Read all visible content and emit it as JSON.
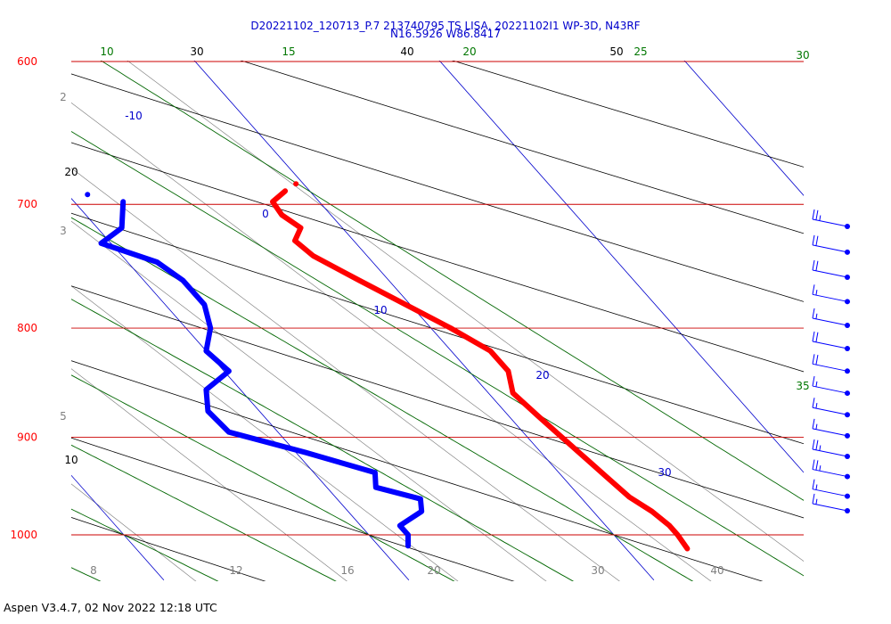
{
  "header": {
    "title_line1": "D20221102_120713_P.7 213740795 TS LISA, 20221102I1 WP-3D, N43RF",
    "title_line2": "N16.5926 W86.8417"
  },
  "footer": {
    "text": "Aspen V3.4.7, 02 Nov 2022  12:18 UTC"
  },
  "chart_data": {
    "type": "skew-t log-p",
    "pressure_axis": {
      "labels": [
        "600",
        "700",
        "800",
        "900",
        "1000"
      ],
      "ylim_hPa": [
        600,
        1050
      ],
      "scale": "log"
    },
    "temperature_axis": {
      "label": "",
      "xlim_C": [
        6,
        45
      ]
    },
    "isotherm_labels": [
      "-10",
      "0",
      "10",
      "20",
      "30"
    ],
    "dry_adiabat_labels": [
      "10",
      "20",
      "30",
      "40",
      "50"
    ],
    "moist_adiabat_labels": [
      "10",
      "15",
      "20",
      "25",
      "30",
      "35"
    ],
    "mixing_ratio_labels": [
      "2",
      "3",
      "5",
      "8",
      "12",
      "16",
      "20",
      "30",
      "40"
    ],
    "colors": {
      "temperature": "#ff0000",
      "dewpoint": "#0000ff",
      "isobar": "#cc0000",
      "isotherm": "#0000cc",
      "dry_adiabat": "#000000",
      "moist_adiabat": "#006600",
      "mixing_ratio": "#808080",
      "wind": "#0000ff"
    },
    "series": [
      {
        "values": [
          [
            690,
            29.0
          ],
          [
            698,
            28.1
          ],
          [
            708,
            28.0
          ],
          [
            718,
            28.3
          ],
          [
            728,
            27.6
          ],
          [
            740,
            27.8
          ],
          [
            760,
            28.8
          ],
          [
            800,
            30.8
          ],
          [
            820,
            31.6
          ],
          [
            838,
            31.6
          ],
          [
            858,
            31.0
          ],
          [
            880,
            31.2
          ],
          [
            900,
            31.4
          ],
          [
            920,
            31.6
          ],
          [
            940,
            31.8
          ],
          [
            960,
            32.0
          ],
          [
            975,
            32.4
          ],
          [
            990,
            32.6
          ],
          [
            1000,
            32.6
          ],
          [
            1015,
            32.5
          ]
        ]
      },
      {
        "values": [
          [
            698,
            22.0
          ],
          [
            718,
            21.0
          ],
          [
            730,
            19.6
          ],
          [
            745,
            21.2
          ],
          [
            760,
            21.6
          ],
          [
            780,
            21.6
          ],
          [
            800,
            21.0
          ],
          [
            820,
            20.0
          ],
          [
            838,
            20.2
          ],
          [
            855,
            18.6
          ],
          [
            875,
            17.9
          ],
          [
            895,
            18.0
          ],
          [
            915,
            20.4
          ],
          [
            935,
            22.5
          ],
          [
            950,
            22.0
          ],
          [
            962,
            23.4
          ],
          [
            975,
            23.0
          ],
          [
            990,
            21.6
          ],
          [
            1000,
            21.6
          ],
          [
            1012,
            21.2
          ]
        ]
      }
    ],
    "wind_barbs": {
      "levels_hPa": [
        710,
        730,
        750,
        770,
        790,
        810,
        830,
        850,
        870,
        890,
        910,
        930,
        950,
        965
      ],
      "speeds_kt": [
        25,
        20,
        20,
        15,
        15,
        20,
        20,
        15,
        15,
        15,
        25,
        25,
        15,
        15
      ]
    }
  }
}
